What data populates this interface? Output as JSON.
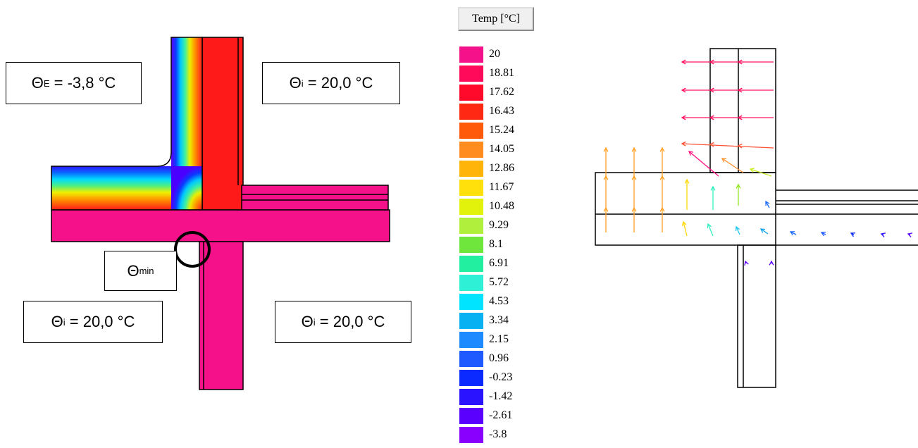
{
  "annotations": [
    {
      "symbol": "Θ",
      "subscript": "E",
      "text": " = -3,8 °C"
    },
    {
      "symbol": "Θ",
      "subscript": "i",
      "text": " = 20,0 °C"
    },
    {
      "symbol": "Θ",
      "subscript": "min",
      "text": ""
    },
    {
      "symbol": "Θ",
      "subscript": "i",
      "text": " = 20,0 °C"
    },
    {
      "symbol": "Θ",
      "subscript": "i",
      "text": " = 20,0 °C"
    }
  ],
  "legend": {
    "title": "Temp [°C]",
    "entries": [
      {
        "label": "20",
        "color": "#f5118a"
      },
      {
        "label": "18.81",
        "color": "#ff0a5a"
      },
      {
        "label": "17.62",
        "color": "#ff0a2a"
      },
      {
        "label": "16.43",
        "color": "#ff2812"
      },
      {
        "label": "15.24",
        "color": "#ff5a0a"
      },
      {
        "label": "14.05",
        "color": "#ff8c1e"
      },
      {
        "label": "12.86",
        "color": "#ffb40a"
      },
      {
        "label": "11.67",
        "color": "#ffe00a"
      },
      {
        "label": "10.48",
        "color": "#e2f20a"
      },
      {
        "label": "9.29",
        "color": "#b0f03c"
      },
      {
        "label": "8.1",
        "color": "#6ee63c"
      },
      {
        "label": "6.91",
        "color": "#22f0a0"
      },
      {
        "label": "5.72",
        "color": "#2ef0d6"
      },
      {
        "label": "4.53",
        "color": "#00e4ff"
      },
      {
        "label": "3.34",
        "color": "#08b2f2"
      },
      {
        "label": "2.15",
        "color": "#1e8aff"
      },
      {
        "label": "0.96",
        "color": "#1e5aff"
      },
      {
        "label": "-0.23",
        "color": "#0a2aff"
      },
      {
        "label": "-1.42",
        "color": "#2a14ff"
      },
      {
        "label": "-2.61",
        "color": "#5a00ff"
      },
      {
        "label": "-3.8",
        "color": "#8a00ff"
      }
    ]
  }
}
